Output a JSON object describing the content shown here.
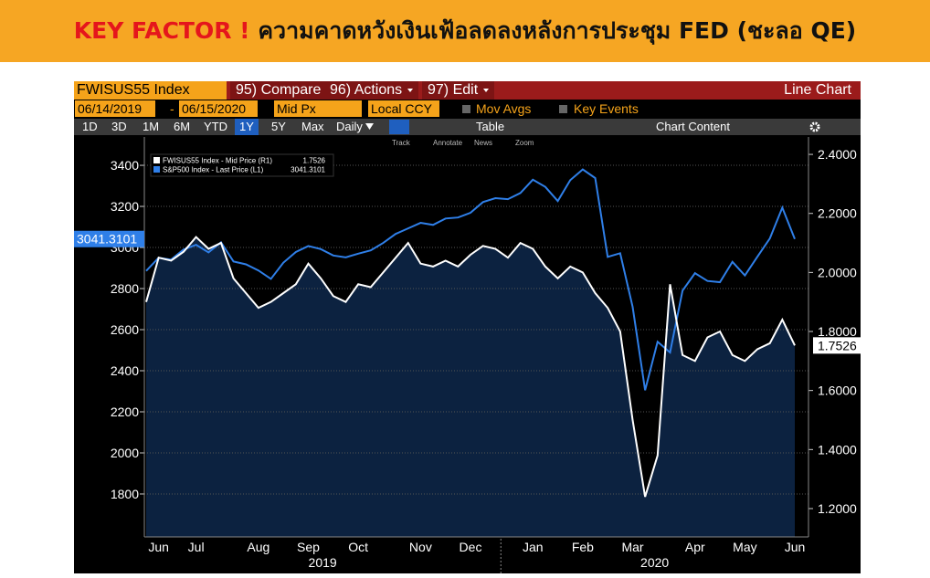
{
  "header": {
    "title_key": "KEY FACTOR !",
    "title_text": "ความคาดหวังเงินเฟ้อลดลงหลังการประชุม FED (ชะลอ QE)"
  },
  "toolbar": {
    "ticker": "FWISUS55 Index",
    "compare": "95) Compare",
    "actions": "96) Actions",
    "edit": "97) Edit",
    "chart_kind": "Line Chart",
    "start_date": "06/14/2019",
    "date_sep": "-",
    "end_date": "06/15/2020",
    "field": "Mid Px",
    "currency": "Local CCY",
    "mov_avgs": "Mov Avgs",
    "key_events": "Key Events",
    "periods": [
      "1D",
      "3D",
      "1M",
      "6M",
      "YTD",
      "1Y",
      "5Y",
      "Max"
    ],
    "active_period": 5,
    "frequency": "Daily",
    "table": "Table",
    "chart_content": "Chart Content",
    "chart_tools": [
      "Track",
      "Annotate",
      "News",
      "Zoom"
    ]
  },
  "chart_data": {
    "type": "line",
    "legend": "upper left",
    "grid": true,
    "fill_color": "#0c2240",
    "categories": [
      null,
      "Jun",
      null,
      null,
      "Jul",
      null,
      null,
      null,
      null,
      "Aug",
      null,
      null,
      null,
      "Sep",
      null,
      null,
      null,
      "Oct",
      null,
      null,
      null,
      null,
      "Nov",
      null,
      null,
      null,
      "Dec",
      null,
      null,
      null,
      null,
      "Jan",
      null,
      null,
      null,
      "Feb",
      null,
      null,
      null,
      "Mar",
      null,
      null,
      null,
      null,
      "Apr",
      null,
      null,
      null,
      "May",
      null,
      null,
      null,
      "Jun"
    ],
    "x_groups": [
      "2019",
      "2020"
    ],
    "series": [
      {
        "name": "FWISUS55 Index - Mid Price (R1)",
        "color": "#ffffff",
        "axis": "y2",
        "area": true,
        "values": [
          1.9,
          2.05,
          2.04,
          2.07,
          2.12,
          2.08,
          2.1,
          1.98,
          1.93,
          1.88,
          1.9,
          1.93,
          1.96,
          2.03,
          1.98,
          1.92,
          1.9,
          1.96,
          1.95,
          2.0,
          2.05,
          2.1,
          2.03,
          2.02,
          2.04,
          2.02,
          2.06,
          2.09,
          2.08,
          2.05,
          2.1,
          2.08,
          2.02,
          1.98,
          2.02,
          2.0,
          1.93,
          1.88,
          1.8,
          1.5,
          1.24,
          1.38,
          1.96,
          1.72,
          1.7,
          1.78,
          1.8,
          1.72,
          1.7,
          1.74,
          1.76,
          1.84,
          1.7526
        ]
      },
      {
        "name": "S&P500 Index - Last Price (L1)",
        "color": "#2f7fe8",
        "values": [
          2886,
          2950,
          2941,
          2990,
          3013,
          2976,
          3025,
          2932,
          2918,
          2888,
          2847,
          2926,
          2978,
          3007,
          2992,
          2961,
          2952,
          2970,
          2986,
          3022,
          3066,
          3093,
          3120,
          3110,
          3141,
          3146,
          3169,
          3221,
          3240,
          3235,
          3265,
          3330,
          3295,
          3226,
          3328,
          3380,
          3338,
          2954,
          2972,
          2711,
          2305,
          2541,
          2489,
          2790,
          2875,
          2837,
          2831,
          2930,
          2864,
          2955,
          3044,
          3194,
          3041.3101
        ]
      }
    ],
    "ylim": [
      1591,
      3538
    ],
    "yticks": [
      1800,
      2000,
      2200,
      2400,
      2600,
      2800,
      3000,
      3200,
      3400
    ],
    "y2lim": [
      1.104,
      2.459
    ],
    "y2ticks": [
      {
        "value": 1.2,
        "label": "1.2000"
      },
      {
        "value": 1.4,
        "label": "1.4000"
      },
      {
        "value": 1.6,
        "label": "1.6000"
      },
      {
        "value": 1.8,
        "label": "1.8000"
      },
      {
        "value": 2.0,
        "label": "2.0000"
      },
      {
        "value": 2.2,
        "label": "2.2000"
      },
      {
        "value": 2.4,
        "label": "2.4000"
      }
    ]
  }
}
